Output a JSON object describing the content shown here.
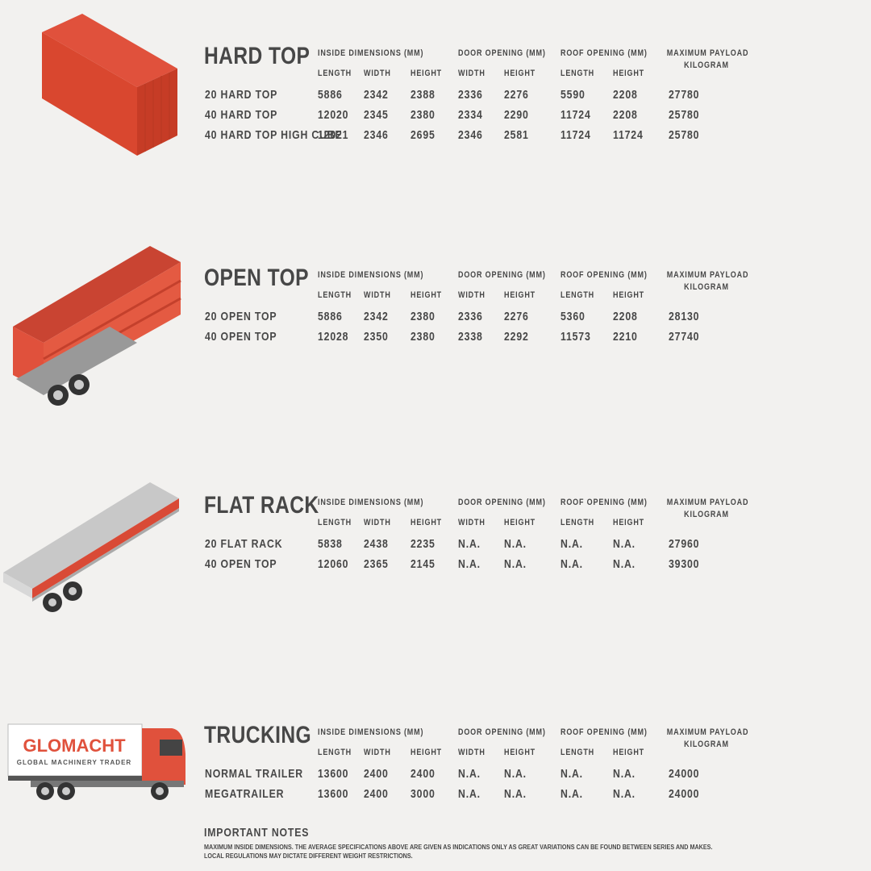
{
  "sections": [
    {
      "title": "HARD TOP",
      "groups": [
        "INSIDE DIMENSIONS (MM)",
        "DOOR OPENING (MM)",
        "ROOF OPENING (MM)"
      ],
      "payload": [
        "MAXIMUM PAYLOAD",
        "KILOGRAM"
      ],
      "columns": [
        "LENGTH",
        "WIDTH",
        "HEIGHT",
        "WIDTH",
        "HEIGHT",
        "LENGTH",
        "HEIGHT"
      ],
      "rows": [
        [
          "20 HARD TOP",
          "5886",
          "2342",
          "2388",
          "2336",
          "2276",
          "5590",
          "2208",
          "27780"
        ],
        [
          "40 HARD TOP",
          "12020",
          "2345",
          "2380",
          "2334",
          "2290",
          "11724",
          "2208",
          "25780"
        ],
        [
          "40 HARD TOP HIGH CUBE",
          "12021",
          "2346",
          "2695",
          "2346",
          "2581",
          "11724",
          "11724",
          "25780"
        ]
      ]
    },
    {
      "title": "OPEN TOP",
      "groups": [
        "INSIDE DIMENSIONS (MM)",
        "DOOR OPENING (MM)",
        "ROOF OPENING (MM)"
      ],
      "payload": [
        "MAXIMUM PAYLOAD",
        "KILOGRAM"
      ],
      "columns": [
        "LENGTH",
        "WIDTH",
        "HEIGHT",
        "WIDTH",
        "HEIGHT",
        "LENGTH",
        "HEIGHT"
      ],
      "rows": [
        [
          "20 OPEN TOP",
          "5886",
          "2342",
          "2380",
          "2336",
          "2276",
          "5360",
          "2208",
          "28130"
        ],
        [
          "40 OPEN TOP",
          "12028",
          "2350",
          "2380",
          "2338",
          "2292",
          "11573",
          "2210",
          "27740"
        ]
      ]
    },
    {
      "title": "FLAT RACK",
      "groups": [
        "INSIDE DIMENSIONS (MM)",
        "DOOR OPENING (MM)",
        "ROOF OPENING (MM)"
      ],
      "payload": [
        "MAXIMUM PAYLOAD",
        "KILOGRAM"
      ],
      "columns": [
        "LENGTH",
        "WIDTH",
        "HEIGHT",
        "WIDTH",
        "HEIGHT",
        "LENGTH",
        "HEIGHT"
      ],
      "rows": [
        [
          "20 FLAT RACK",
          "5838",
          "2438",
          "2235",
          "N.A.",
          "N.A.",
          "N.A.",
          "N.A.",
          "27960"
        ],
        [
          "40 OPEN TOP",
          "12060",
          "2365",
          "2145",
          "N.A.",
          "N.A.",
          "N.A.",
          "N.A.",
          "39300"
        ]
      ]
    },
    {
      "title": "TRUCKING",
      "groups": [
        "INSIDE DIMENSIONS (MM)",
        "DOOR OPENING (MM)",
        "ROOF OPENING (MM)"
      ],
      "payload": [
        "MAXIMUM PAYLOAD",
        "KILOGRAM"
      ],
      "columns": [
        "LENGTH",
        "WIDTH",
        "HEIGHT",
        "WIDTH",
        "HEIGHT",
        "LENGTH",
        "HEIGHT"
      ],
      "rows": [
        [
          "NORMAL TRAILER",
          "13600",
          "2400",
          "2400",
          "N.A.",
          "N.A.",
          "N.A.",
          "N.A.",
          "24000"
        ],
        [
          "MEGATRAILER",
          "13600",
          "2400",
          "3000",
          "N.A.",
          "N.A.",
          "N.A.",
          "N.A.",
          "24000"
        ]
      ]
    }
  ],
  "logo": {
    "name": "GLOMACHT",
    "tagline": "GLOBAL MACHINERY TRADER"
  },
  "notes": {
    "title": "IMPORTANT NOTES",
    "lines": [
      "MAXIMUM INSIDE DIMENSIONS. THE AVERAGE SPECIFICATIONS ABOVE ARE GIVEN AS INDICATIONS ONLY AS GREAT VARIATIONS CAN BE FOUND BETWEEN SERIES AND MAKES.",
      "LOCAL REGULATIONS MAY DICTATE DIFFERENT WEIGHT RESTRICTIONS."
    ]
  }
}
